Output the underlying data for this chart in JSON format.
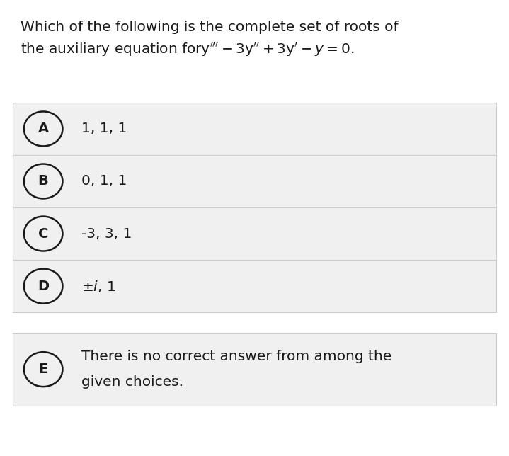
{
  "background_color": "#ffffff",
  "question_line1": "Which of the following is the complete set of roots of",
  "question_line2": "the auxiliary equation for y‴− 3y″+ 3y′− y = 0.",
  "options": [
    {
      "label": "A",
      "text": "1, 1, 1"
    },
    {
      "label": "B",
      "text": "0, 1, 1"
    },
    {
      "label": "C",
      "text": "-3, 3, 1"
    },
    {
      "label": "D",
      "text": "±i, 1"
    },
    {
      "label": "E",
      "text": "There is no correct answer from among the\ngiven choices."
    }
  ],
  "option_bg": "#f0f0f0",
  "option_border": "#cccccc",
  "text_color": "#1a1a1a",
  "circle_color": "#1a1a1a",
  "question_fontsize": 14.5,
  "option_label_fontsize": 14,
  "option_text_fontsize": 14.5,
  "fig_width": 7.19,
  "fig_height": 6.44
}
